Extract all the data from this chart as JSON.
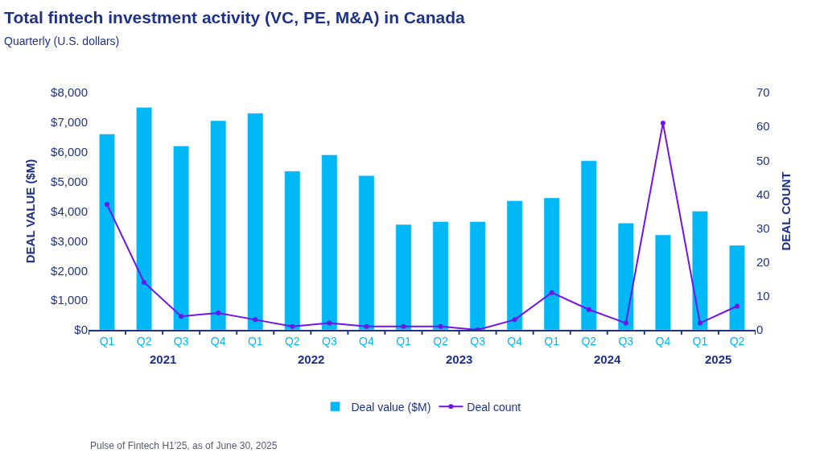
{
  "chart_data": {
    "type": "bar",
    "title": "Total fintech investment activity (VC, PE, M&A) in Canada",
    "subtitle": "Quarterly (U.S. dollars)",
    "ylabel": "DEAL VALUE ($M)",
    "y2label": "DEAL COUNT",
    "categories": [
      "Q1",
      "Q2",
      "Q3",
      "Q4",
      "Q1",
      "Q2",
      "Q3",
      "Q4",
      "Q1",
      "Q2",
      "Q3",
      "Q4",
      "Q1",
      "Q2",
      "Q3",
      "Q4",
      "Q1",
      "Q2"
    ],
    "series": [
      {
        "name": "Deal value ($M)",
        "color": "#00b8f5",
        "values": [
          6600,
          7500,
          6200,
          7050,
          7300,
          5350,
          5900,
          5200,
          3550,
          3650,
          3650,
          4350,
          4450,
          5700,
          3600,
          3200,
          4000,
          2850
        ]
      },
      {
        "name": "Deal count",
        "type": "line",
        "axis": "y2",
        "color": "#7213ea",
        "marker": "circle",
        "values": [
          37,
          14,
          4,
          5,
          3,
          1,
          2,
          1,
          1,
          1,
          0,
          3,
          11,
          6,
          2,
          61,
          2,
          7
        ]
      }
    ],
    "ylim": [
      0,
      8000
    ],
    "yticks": [
      {
        "value": 0,
        "label": "$0"
      },
      {
        "value": 1000,
        "label": "$1,000"
      },
      {
        "value": 2000,
        "label": "$2,000"
      },
      {
        "value": 3000,
        "label": "$3,000"
      },
      {
        "value": 4000,
        "label": "$4,000"
      },
      {
        "value": 5000,
        "label": "$5,000"
      },
      {
        "value": 6000,
        "label": "$6,000"
      },
      {
        "value": 7000,
        "label": "$7,000"
      },
      {
        "value": 8000,
        "label": "$8,000"
      }
    ],
    "y2lim": [
      0,
      70
    ],
    "y2ticks": [
      0,
      10,
      20,
      30,
      40,
      50,
      60,
      70
    ],
    "legend": "bottom",
    "annotations": [
      "2021",
      "2022",
      "2023",
      "2024",
      "2025",
      "Pulse of Fintech H1'25, as of June 30, 2025"
    ]
  }
}
